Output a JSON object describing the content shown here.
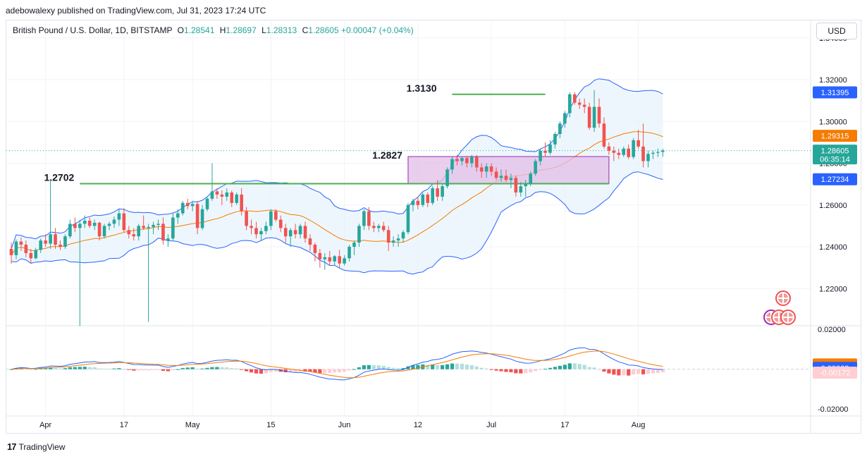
{
  "header": "adebowalexy published on TradingView.com, Jul 31, 2023 17:24 UTC",
  "legend": {
    "symbol": "British Pound / U.S. Dollar, 1D, BITSTAMP",
    "o_label": "O",
    "o": "1.28541",
    "h_label": "H",
    "h": "1.28697",
    "l_label": "L",
    "l": "1.28313",
    "c_label": "C",
    "c": "1.28605",
    "change": "+0.00047 (+0.04%)"
  },
  "currency_button": "USD",
  "footer_brand": "TradingView",
  "colors": {
    "up": "#26a69a",
    "down": "#ef5350",
    "bb": "#2962ff",
    "bb_fill": "#e3f0fc",
    "ma": "#f57c00",
    "annot_line": "#4caf50",
    "box_fill": "#e1bee7",
    "box_border": "#9c27b0"
  },
  "chart_data": [
    {
      "type": "candlestick",
      "ylim": [
        1.2022,
        1.3487
      ],
      "y_ticks": [
        "1.34000",
        "1.32000",
        "1.30000",
        "1.28000",
        "1.26000",
        "1.24000",
        "1.22000"
      ],
      "x_ticks": [
        "Apr",
        "17",
        "May",
        "15",
        "Jun",
        "12",
        "Jul",
        "17",
        "Aug"
      ],
      "x_tick_days": [
        7,
        23,
        37,
        53,
        68,
        83,
        98,
        113,
        128
      ],
      "annotations": [
        {
          "label": "1.3130",
          "value": 1.313,
          "x1": 90,
          "x2": 109
        },
        {
          "label": "1.2827",
          "value": 1.2827
        },
        {
          "label": "1.2702",
          "value": 1.2702,
          "x1": 14,
          "x2": 122
        }
      ],
      "box": {
        "x1": 81,
        "x2": 122,
        "y_top": 1.2832,
        "y_bottom": 1.2702
      },
      "price_badges": [
        {
          "label": "1.31395",
          "value": 1.31395,
          "color": "#2962ff"
        },
        {
          "label": "1.29315",
          "value": 1.29315,
          "color": "#f57c00"
        },
        {
          "label": "1.28605",
          "sub": "06:35:14",
          "value": 1.28605,
          "color": "#26a69a"
        },
        {
          "label": "1.27234",
          "value": 1.27234,
          "color": "#2962ff"
        }
      ],
      "candles": [
        [
          1.239,
          1.242,
          1.2318,
          1.236
        ],
        [
          1.236,
          1.2435,
          1.234,
          1.2425
        ],
        [
          1.2425,
          1.2445,
          1.238,
          1.241
        ],
        [
          1.241,
          1.243,
          1.235,
          1.237
        ],
        [
          1.237,
          1.239,
          1.232,
          1.2345
        ],
        [
          1.2345,
          1.2395,
          1.234,
          1.2385
        ],
        [
          1.2385,
          1.244,
          1.237,
          1.243
        ],
        [
          1.243,
          1.246,
          1.24,
          1.2415
        ],
        [
          1.2415,
          1.2715,
          1.239,
          1.246
        ],
        [
          1.246,
          1.249,
          1.239,
          1.241
        ],
        [
          1.241,
          1.243,
          1.2385,
          1.24
        ],
        [
          1.24,
          1.246,
          1.239,
          1.245
        ],
        [
          1.245,
          1.253,
          1.244,
          1.251
        ],
        [
          1.251,
          1.254,
          1.247,
          1.249
        ],
        [
          1.249,
          1.253,
          1.202,
          1.251
        ],
        [
          1.251,
          1.255,
          1.249,
          1.2525
        ],
        [
          1.2525,
          1.254,
          1.249,
          1.25
        ],
        [
          1.25,
          1.253,
          1.248,
          1.2515
        ],
        [
          1.2515,
          1.252,
          1.243,
          1.245
        ],
        [
          1.245,
          1.251,
          1.244,
          1.25
        ],
        [
          1.25,
          1.252,
          1.248,
          1.251
        ],
        [
          1.251,
          1.2545,
          1.249,
          1.253
        ],
        [
          1.253,
          1.258,
          1.25,
          1.256
        ],
        [
          1.256,
          1.2585,
          1.247,
          1.248
        ],
        [
          1.248,
          1.25,
          1.244,
          1.246
        ],
        [
          1.246,
          1.249,
          1.243,
          1.245
        ],
        [
          1.245,
          1.251,
          1.243,
          1.25
        ],
        [
          1.25,
          1.255,
          1.248,
          1.249
        ],
        [
          1.249,
          1.251,
          1.204,
          1.2495
        ],
        [
          1.2495,
          1.252,
          1.246,
          1.2505
        ],
        [
          1.2505,
          1.253,
          1.248,
          1.251
        ],
        [
          1.251,
          1.254,
          1.241,
          1.243
        ],
        [
          1.243,
          1.246,
          1.24,
          1.244
        ],
        [
          1.244,
          1.256,
          1.243,
          1.254
        ],
        [
          1.254,
          1.258,
          1.251,
          1.256
        ],
        [
          1.256,
          1.262,
          1.255,
          1.261
        ],
        [
          1.261,
          1.263,
          1.258,
          1.2595
        ],
        [
          1.2595,
          1.262,
          1.257,
          1.2605
        ],
        [
          1.2605,
          1.262,
          1.246,
          1.249
        ],
        [
          1.249,
          1.26,
          1.248,
          1.258
        ],
        [
          1.258,
          1.264,
          1.257,
          1.263
        ],
        [
          1.263,
          1.28,
          1.262,
          1.2665
        ],
        [
          1.2665,
          1.268,
          1.263,
          1.265
        ],
        [
          1.265,
          1.267,
          1.26,
          1.264
        ],
        [
          1.264,
          1.268,
          1.262,
          1.266
        ],
        [
          1.266,
          1.267,
          1.259,
          1.261
        ],
        [
          1.261,
          1.266,
          1.26,
          1.265
        ],
        [
          1.265,
          1.268,
          1.255,
          1.257
        ],
        [
          1.257,
          1.259,
          1.248,
          1.25
        ],
        [
          1.25,
          1.253,
          1.246,
          1.249
        ],
        [
          1.249,
          1.252,
          1.244,
          1.246
        ],
        [
          1.246,
          1.249,
          1.243,
          1.2475
        ],
        [
          1.2475,
          1.252,
          1.246,
          1.25
        ],
        [
          1.25,
          1.258,
          1.248,
          1.257
        ],
        [
          1.257,
          1.258,
          1.252,
          1.253
        ],
        [
          1.253,
          1.255,
          1.247,
          1.249
        ],
        [
          1.249,
          1.251,
          1.242,
          1.245
        ],
        [
          1.245,
          1.249,
          1.24,
          1.248
        ],
        [
          1.248,
          1.251,
          1.244,
          1.246
        ],
        [
          1.246,
          1.251,
          1.244,
          1.25
        ],
        [
          1.25,
          1.252,
          1.242,
          1.244
        ],
        [
          1.244,
          1.246,
          1.238,
          1.241
        ],
        [
          1.241,
          1.242,
          1.233,
          1.237
        ],
        [
          1.237,
          1.239,
          1.23,
          1.234
        ],
        [
          1.234,
          1.237,
          1.229,
          1.235
        ],
        [
          1.235,
          1.238,
          1.231,
          1.233
        ],
        [
          1.233,
          1.236,
          1.231,
          1.2355
        ],
        [
          1.2355,
          1.2385,
          1.23,
          1.232
        ],
        [
          1.232,
          1.236,
          1.231,
          1.2345
        ],
        [
          1.2345,
          1.241,
          1.233,
          1.24
        ],
        [
          1.24,
          1.243,
          1.236,
          1.242
        ],
        [
          1.242,
          1.251,
          1.24,
          1.25
        ],
        [
          1.25,
          1.258,
          1.248,
          1.257
        ],
        [
          1.257,
          1.259,
          1.248,
          1.25
        ],
        [
          1.25,
          1.252,
          1.247,
          1.249
        ],
        [
          1.249,
          1.251,
          1.247,
          1.25
        ],
        [
          1.25,
          1.252,
          1.247,
          1.248
        ],
        [
          1.248,
          1.25,
          1.238,
          1.242
        ],
        [
          1.242,
          1.245,
          1.24,
          1.243
        ],
        [
          1.243,
          1.246,
          1.24,
          1.244
        ],
        [
          1.244,
          1.248,
          1.242,
          1.247
        ],
        [
          1.247,
          1.261,
          1.246,
          1.26
        ],
        [
          1.26,
          1.263,
          1.257,
          1.262
        ],
        [
          1.262,
          1.264,
          1.258,
          1.26
        ],
        [
          1.26,
          1.266,
          1.259,
          1.265
        ],
        [
          1.265,
          1.266,
          1.259,
          1.261
        ],
        [
          1.261,
          1.269,
          1.26,
          1.268
        ],
        [
          1.268,
          1.272,
          1.262,
          1.264
        ],
        [
          1.264,
          1.27,
          1.262,
          1.269
        ],
        [
          1.269,
          1.278,
          1.268,
          1.277
        ],
        [
          1.277,
          1.283,
          1.275,
          1.282
        ],
        [
          1.282,
          1.284,
          1.279,
          1.281
        ],
        [
          1.281,
          1.283,
          1.279,
          1.2825
        ],
        [
          1.2825,
          1.2835,
          1.278,
          1.28
        ],
        [
          1.28,
          1.284,
          1.278,
          1.283
        ],
        [
          1.283,
          1.284,
          1.276,
          1.278
        ],
        [
          1.278,
          1.28,
          1.273,
          1.276
        ],
        [
          1.276,
          1.28,
          1.273,
          1.2785
        ],
        [
          1.2785,
          1.28,
          1.274,
          1.276
        ],
        [
          1.276,
          1.278,
          1.272,
          1.273
        ],
        [
          1.273,
          1.277,
          1.271,
          1.274
        ],
        [
          1.274,
          1.277,
          1.271,
          1.272
        ],
        [
          1.272,
          1.275,
          1.268,
          1.273
        ],
        [
          1.273,
          1.274,
          1.264,
          1.266
        ],
        [
          1.266,
          1.271,
          1.264,
          1.269
        ],
        [
          1.269,
          1.272,
          1.264,
          1.27
        ],
        [
          1.27,
          1.276,
          1.269,
          1.275
        ],
        [
          1.275,
          1.282,
          1.274,
          1.281
        ],
        [
          1.281,
          1.287,
          1.279,
          1.286
        ],
        [
          1.286,
          1.29,
          1.283,
          1.285
        ],
        [
          1.285,
          1.291,
          1.284,
          1.289
        ],
        [
          1.289,
          1.295,
          1.287,
          1.294
        ],
        [
          1.294,
          1.3,
          1.292,
          1.299
        ],
        [
          1.299,
          1.305,
          1.297,
          1.304
        ],
        [
          1.304,
          1.314,
          1.302,
          1.313
        ],
        [
          1.313,
          1.314,
          1.308,
          1.309
        ],
        [
          1.309,
          1.311,
          1.306,
          1.308
        ],
        [
          1.308,
          1.311,
          1.304,
          1.307
        ],
        [
          1.307,
          1.309,
          1.296,
          1.297
        ],
        [
          1.297,
          1.315,
          1.295,
          1.307
        ],
        [
          1.307,
          1.311,
          1.297,
          1.299
        ],
        [
          1.299,
          1.302,
          1.287,
          1.288
        ],
        [
          1.288,
          1.29,
          1.284,
          1.286
        ],
        [
          1.286,
          1.288,
          1.281,
          1.285
        ],
        [
          1.285,
          1.287,
          1.282,
          1.284
        ],
        [
          1.284,
          1.288,
          1.283,
          1.287
        ],
        [
          1.287,
          1.289,
          1.282,
          1.283
        ],
        [
          1.283,
          1.292,
          1.282,
          1.291
        ],
        [
          1.291,
          1.296,
          1.287,
          1.288
        ],
        [
          1.288,
          1.299,
          1.278,
          1.281
        ],
        [
          1.281,
          1.286,
          1.278,
          1.2845
        ],
        [
          1.2845,
          1.286,
          1.282,
          1.285
        ],
        [
          1.285,
          1.287,
          1.283,
          1.2854
        ],
        [
          1.28541,
          1.28697,
          1.28313,
          1.28605
        ]
      ]
    },
    {
      "type": "macd",
      "ylim": [
        -0.0235,
        0.0215
      ],
      "y_ticks": [
        "0.02000",
        "-0.02000"
      ],
      "price_badges": [
        {
          "label": "0.00240",
          "value": 0.0024,
          "color": "#f57c00"
        },
        {
          "label": "0.00068",
          "value": 0.00068,
          "color": "#2962ff"
        },
        {
          "label": "-0.00172",
          "value": -0.00172,
          "color": "#ffcdd2",
          "text_color": "#131722"
        }
      ]
    }
  ]
}
